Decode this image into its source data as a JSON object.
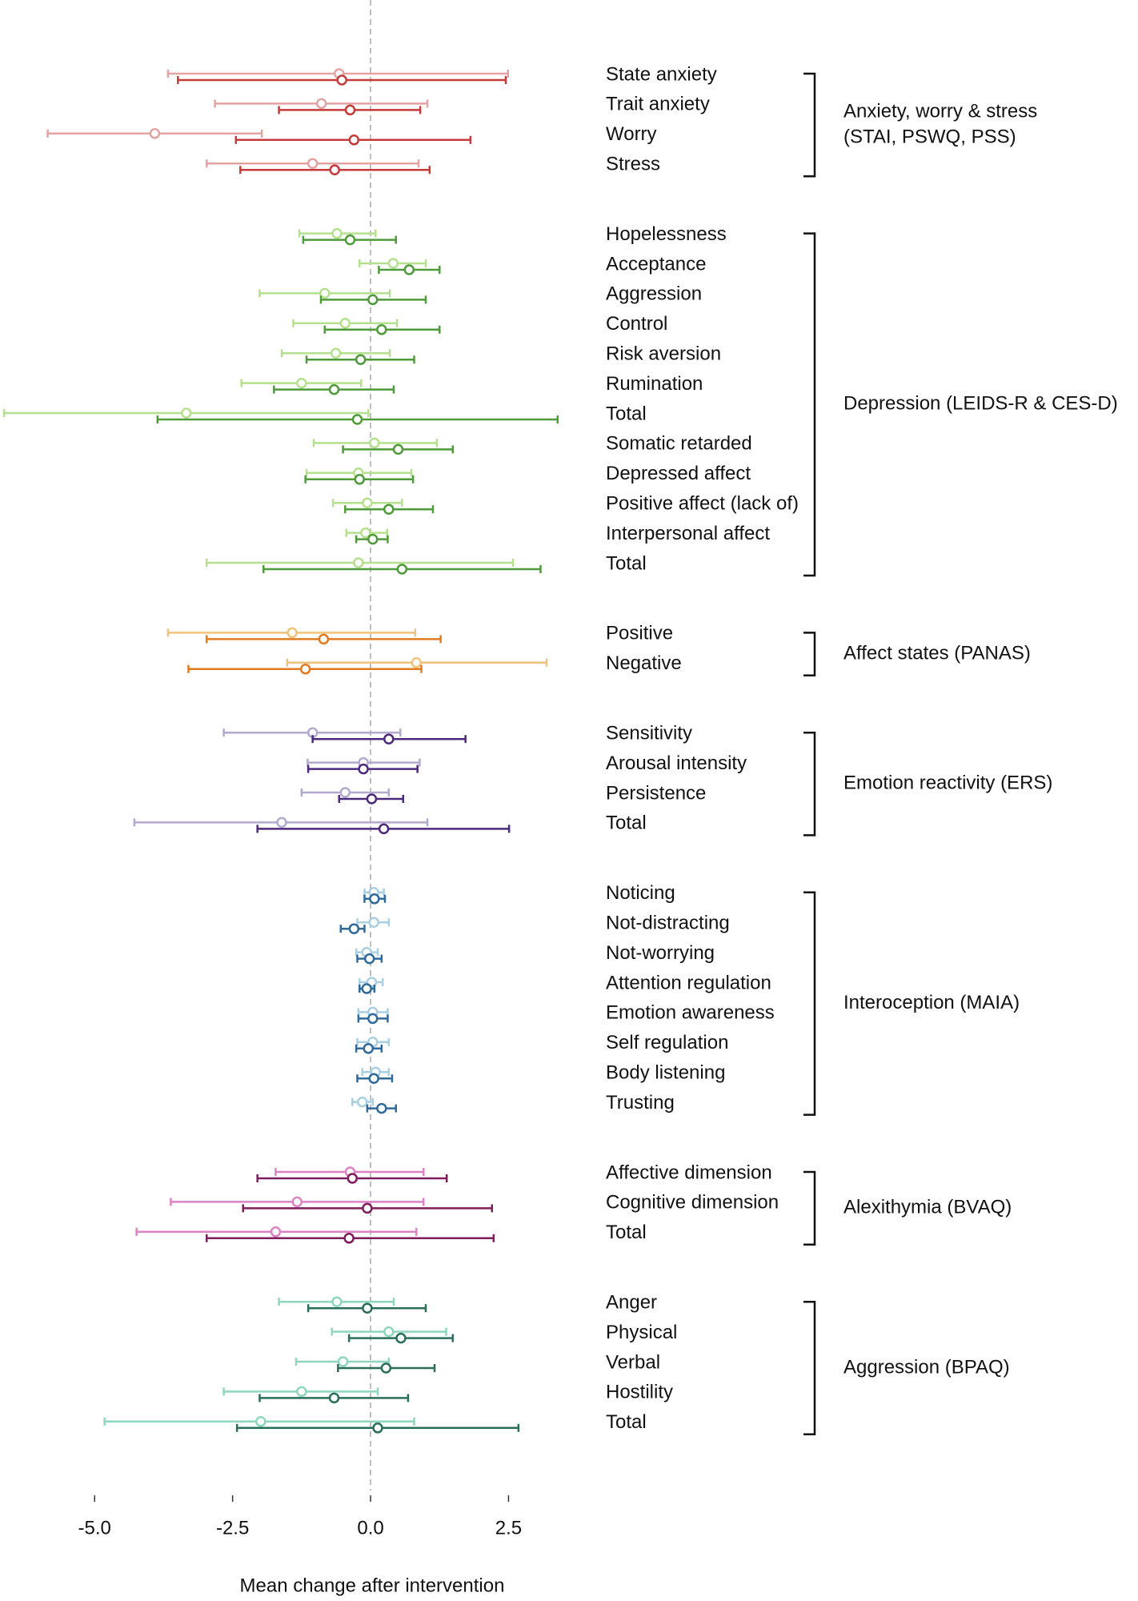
{
  "chart_data": {
    "type": "forest",
    "xlabel": "Mean change after intervention",
    "xlim": [
      -6.7,
      3.9
    ],
    "xticks": [
      {
        "value": -5,
        "label": "-5.0"
      },
      {
        "value": -2.5,
        "label": "-2.5"
      },
      {
        "value": 0,
        "label": "0.0"
      },
      {
        "value": 2.5,
        "label": "2.5"
      }
    ],
    "reference_line": 0,
    "groups": [
      {
        "label": [
          "Anxiety, worry & stress",
          "(STAI, PSWQ, PSS)"
        ],
        "colors": [
          "#e3a3a3",
          "#c53a3a"
        ],
        "rows": [
          {
            "label": "State anxiety",
            "estimates": [
              [
                -0.57,
                -3.67,
                2.49
              ],
              [
                -0.52,
                -3.49,
                2.45
              ]
            ]
          },
          {
            "label": "Trait anxiety",
            "estimates": [
              [
                -0.89,
                -2.82,
                1.03
              ],
              [
                -0.37,
                -1.66,
                0.9
              ]
            ]
          },
          {
            "label": "Worry",
            "estimates": [
              [
                -3.91,
                -5.85,
                -1.97
              ],
              [
                -0.3,
                -2.44,
                1.81
              ]
            ]
          },
          {
            "label": "Stress",
            "estimates": [
              [
                -1.05,
                -2.97,
                0.87
              ],
              [
                -0.65,
                -2.36,
                1.07
              ]
            ]
          }
        ]
      },
      {
        "label": [
          "Depression (LEIDS-R & CES-D)"
        ],
        "colors": [
          "#b5e08f",
          "#4f9a3a"
        ],
        "rows": [
          {
            "label": "Hopelessness",
            "estimates": [
              [
                -0.61,
                -1.29,
                0.09
              ],
              [
                -0.37,
                -1.22,
                0.46
              ]
            ]
          },
          {
            "label": "Acceptance",
            "estimates": [
              [
                0.41,
                -0.2,
                1.0
              ],
              [
                0.7,
                0.15,
                1.25
              ]
            ]
          },
          {
            "label": "Aggression",
            "estimates": [
              [
                -0.83,
                -2.01,
                0.35
              ],
              [
                0.04,
                -0.9,
                1.0
              ]
            ]
          },
          {
            "label": "Control",
            "estimates": [
              [
                -0.46,
                -1.4,
                0.48
              ],
              [
                0.2,
                -0.83,
                1.25
              ]
            ]
          },
          {
            "label": "Risk aversion",
            "estimates": [
              [
                -0.63,
                -1.61,
                0.35
              ],
              [
                -0.18,
                -1.16,
                0.79
              ]
            ]
          },
          {
            "label": "Rumination",
            "estimates": [
              [
                -1.25,
                -2.34,
                -0.17
              ],
              [
                -0.66,
                -1.75,
                0.42
              ]
            ]
          },
          {
            "label": "Total",
            "estimates": [
              [
                -3.34,
                -6.64,
                -0.04
              ],
              [
                -0.24,
                -3.86,
                3.39
              ]
            ]
          },
          {
            "label": "Somatic retarded",
            "estimates": [
              [
                0.07,
                -1.03,
                1.2
              ],
              [
                0.5,
                -0.5,
                1.49
              ]
            ]
          },
          {
            "label": "Depressed affect",
            "estimates": [
              [
                -0.22,
                -1.16,
                0.74
              ],
              [
                -0.2,
                -1.18,
                0.77
              ]
            ]
          },
          {
            "label": "Positive affect (lack of)",
            "estimates": [
              [
                -0.06,
                -0.68,
                0.57
              ],
              [
                0.33,
                -0.46,
                1.13
              ]
            ]
          },
          {
            "label": "Interpersonal affect",
            "estimates": [
              [
                -0.09,
                -0.44,
                0.3
              ],
              [
                0.04,
                -0.26,
                0.31
              ]
            ]
          },
          {
            "label": "Total",
            "estimates": [
              [
                -0.22,
                -2.97,
                2.58
              ],
              [
                0.57,
                -1.94,
                3.08
              ]
            ]
          }
        ]
      },
      {
        "label": [
          "Affect states (PANAS)"
        ],
        "colors": [
          "#efc27e",
          "#e07b22"
        ],
        "rows": [
          {
            "label": "Positive",
            "estimates": [
              [
                -1.42,
                -3.67,
                0.81
              ],
              [
                -0.85,
                -2.97,
                1.27
              ]
            ]
          },
          {
            "label": "Negative",
            "estimates": [
              [
                0.83,
                -1.51,
                3.19
              ],
              [
                -1.18,
                -3.3,
                0.92
              ]
            ]
          }
        ]
      },
      {
        "label": [
          "Emotion reactivity (ERS)"
        ],
        "colors": [
          "#b3a9cf",
          "#4b2a7b"
        ],
        "rows": [
          {
            "label": "Sensitivity",
            "estimates": [
              [
                -1.05,
                -2.66,
                0.54
              ],
              [
                0.33,
                -1.05,
                1.72
              ]
            ]
          },
          {
            "label": "Arousal intensity",
            "estimates": [
              [
                -0.13,
                -1.14,
                0.89
              ],
              [
                -0.13,
                -1.13,
                0.85
              ]
            ]
          },
          {
            "label": "Persistence",
            "estimates": [
              [
                -0.46,
                -1.25,
                0.33
              ],
              [
                0.02,
                -0.57,
                0.59
              ]
            ]
          },
          {
            "label": "Total",
            "estimates": [
              [
                -1.61,
                -4.28,
                1.03
              ],
              [
                0.24,
                -2.05,
                2.51
              ]
            ]
          }
        ]
      },
      {
        "label": [
          "Interoception (MAIA)"
        ],
        "colors": [
          "#a9cfe3",
          "#2f6a9b"
        ],
        "rows": [
          {
            "label": "Noticing",
            "estimates": [
              [
                0.06,
                -0.11,
                0.24
              ],
              [
                0.07,
                -0.11,
                0.26
              ]
            ]
          },
          {
            "label": "Not-distracting",
            "estimates": [
              [
                0.06,
                -0.24,
                0.33
              ],
              [
                -0.3,
                -0.54,
                -0.11
              ]
            ]
          },
          {
            "label": "Not-worrying",
            "estimates": [
              [
                -0.07,
                -0.26,
                0.13
              ],
              [
                -0.02,
                -0.24,
                0.2
              ]
            ]
          },
          {
            "label": "Attention regulation",
            "estimates": [
              [
                0.02,
                -0.2,
                0.22
              ],
              [
                -0.07,
                -0.2,
                0.07
              ]
            ]
          },
          {
            "label": "Emotion awareness",
            "estimates": [
              [
                0.04,
                -0.22,
                0.31
              ],
              [
                0.04,
                -0.22,
                0.31
              ]
            ]
          },
          {
            "label": "Self regulation",
            "estimates": [
              [
                0.04,
                -0.24,
                0.33
              ],
              [
                -0.04,
                -0.26,
                0.2
              ]
            ]
          },
          {
            "label": "Body listening",
            "estimates": [
              [
                0.09,
                -0.15,
                0.33
              ],
              [
                0.06,
                -0.24,
                0.39
              ]
            ]
          },
          {
            "label": "Trusting",
            "estimates": [
              [
                -0.15,
                -0.33,
                0.04
              ],
              [
                0.2,
                -0.06,
                0.46
              ]
            ]
          }
        ]
      },
      {
        "label": [
          "Alexithymia (BVAQ)"
        ],
        "colors": [
          "#db84c4",
          "#7d1d5c"
        ],
        "rows": [
          {
            "label": "Affective dimension",
            "estimates": [
              [
                -0.37,
                -1.72,
                0.96
              ],
              [
                -0.33,
                -2.05,
                1.38
              ]
            ]
          },
          {
            "label": "Cognitive dimension",
            "estimates": [
              [
                -1.33,
                -3.62,
                0.96
              ],
              [
                -0.06,
                -2.31,
                2.2
              ]
            ]
          },
          {
            "label": "Total",
            "estimates": [
              [
                -1.72,
                -4.24,
                0.83
              ],
              [
                -0.39,
                -2.97,
                2.23
              ]
            ]
          }
        ]
      },
      {
        "label": [
          "Aggression (BPAQ)"
        ],
        "colors": [
          "#8fd6bd",
          "#2a6e5a"
        ],
        "rows": [
          {
            "label": "Anger",
            "estimates": [
              [
                -0.61,
                -1.66,
                0.42
              ],
              [
                -0.06,
                -1.13,
                1.0
              ]
            ]
          },
          {
            "label": "Physical",
            "estimates": [
              [
                0.33,
                -0.7,
                1.37
              ],
              [
                0.55,
                -0.39,
                1.49
              ]
            ]
          },
          {
            "label": "Verbal",
            "estimates": [
              [
                -0.5,
                -1.35,
                0.33
              ],
              [
                0.28,
                -0.59,
                1.16
              ]
            ]
          },
          {
            "label": "Hostility",
            "estimates": [
              [
                -1.25,
                -2.66,
                0.13
              ],
              [
                -0.66,
                -2.01,
                0.68
              ]
            ]
          },
          {
            "label": "Total",
            "estimates": [
              [
                -1.99,
                -4.82,
                0.79
              ],
              [
                0.13,
                -2.42,
                2.68
              ]
            ]
          }
        ]
      }
    ]
  }
}
